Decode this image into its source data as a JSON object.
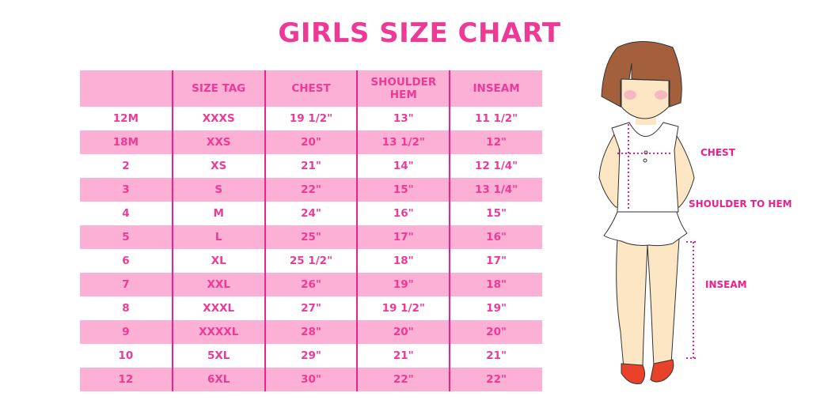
{
  "title": "GIRLS SIZE CHART",
  "table": {
    "headers": [
      "",
      "SIZE TAG",
      "CHEST",
      "SHOULDER HEM",
      "INSEAM"
    ],
    "rows": [
      [
        "12M",
        "XXXS",
        "19 1/2\"",
        "13\"",
        "11 1/2\""
      ],
      [
        "18M",
        "XXS",
        "20\"",
        "13 1/2\"",
        "12\""
      ],
      [
        "2",
        "XS",
        "21\"",
        "14\"",
        "12 1/4\""
      ],
      [
        "3",
        "S",
        "22\"",
        "15\"",
        "13 1/4\""
      ],
      [
        "4",
        "M",
        "24\"",
        "16\"",
        "15\""
      ],
      [
        "5",
        "L",
        "25\"",
        "17\"",
        "16\""
      ],
      [
        "6",
        "XL",
        "25 1/2\"",
        "18\"",
        "17\""
      ],
      [
        "7",
        "XXL",
        "26\"",
        "19\"",
        "18\""
      ],
      [
        "8",
        "XXXL",
        "27\"",
        "19 1/2\"",
        "19\""
      ],
      [
        "9",
        "XXXXL",
        "28\"",
        "20\"",
        "20\""
      ],
      [
        "10",
        "5XL",
        "29\"",
        "21\"",
        "21\""
      ],
      [
        "12",
        "6XL",
        "30\"",
        "22\"",
        "22\""
      ]
    ]
  },
  "figure": {
    "labels": {
      "chest": "CHEST",
      "shoulder_to_hem": "SHOULDER TO HEM",
      "inseam": "INSEAM"
    }
  },
  "colors": {
    "accent": "#ee3a96",
    "row_pink": "#fdb0d5",
    "divider": "#e8258a"
  }
}
